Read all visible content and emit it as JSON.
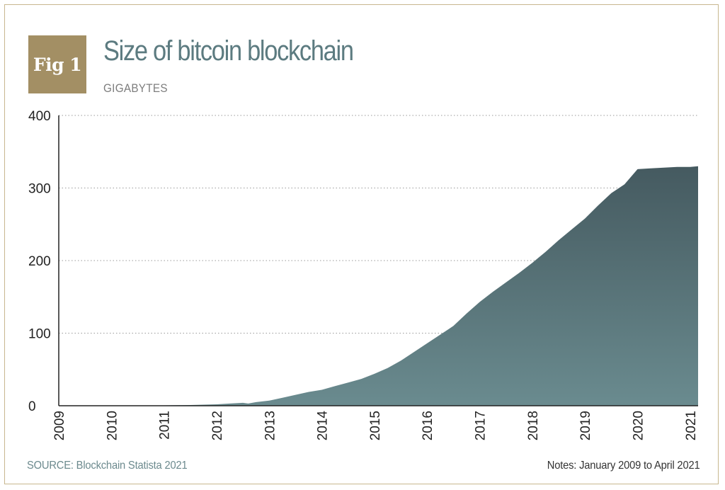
{
  "badge": {
    "label": "Fig 1"
  },
  "header": {
    "title": "Size of bitcoin blockchain",
    "subtitle": "GIGABYTES"
  },
  "footer": {
    "source": "SOURCE: Blockchain Statista 2021",
    "notes": "Notes: January 2009 to April 2021"
  },
  "colors": {
    "badge": "#a38f64",
    "title": "#5c7b80",
    "source": "#6c8a8e",
    "area_top": "#455a60",
    "area_bottom": "#6a8b8f",
    "border": "#c8b78f"
  },
  "chart_data": {
    "type": "area",
    "title": "Size of bitcoin blockchain",
    "ylabel": "GIGABYTES",
    "xlabel": "",
    "ylim": [
      0,
      400
    ],
    "xlim": [
      2009,
      2021.15
    ],
    "y_ticks": [
      0,
      100,
      200,
      300,
      400
    ],
    "x_ticks": [
      "2009",
      "2010",
      "2011",
      "2012",
      "2013",
      "2014",
      "2015",
      "2016",
      "2017",
      "2018",
      "2019",
      "2020",
      "2021"
    ],
    "grid": "horizontal dotted",
    "x": [
      2009.0,
      2010.0,
      2011.0,
      2011.5,
      2012.0,
      2012.25,
      2012.5,
      2012.6,
      2012.75,
      2013.0,
      2013.25,
      2013.5,
      2013.75,
      2014.0,
      2014.25,
      2014.5,
      2014.75,
      2015.0,
      2015.25,
      2015.5,
      2015.75,
      2016.0,
      2016.25,
      2016.5,
      2016.75,
      2017.0,
      2017.25,
      2017.5,
      2017.75,
      2018.0,
      2018.25,
      2018.5,
      2018.75,
      2019.0,
      2019.25,
      2019.5,
      2019.75,
      2020.0,
      2020.25,
      2020.5,
      2020.75,
      2021.0,
      2021.15
    ],
    "y": [
      0,
      0.1,
      0.5,
      1,
      2,
      3,
      4,
      3,
      5,
      7,
      11,
      15,
      19,
      22,
      27,
      32,
      37,
      44,
      52,
      62,
      74,
      86,
      98,
      110,
      127,
      143,
      157,
      170,
      183,
      197,
      212,
      228,
      243,
      258,
      276,
      293,
      305,
      326,
      327,
      328,
      329,
      329,
      330
    ]
  }
}
